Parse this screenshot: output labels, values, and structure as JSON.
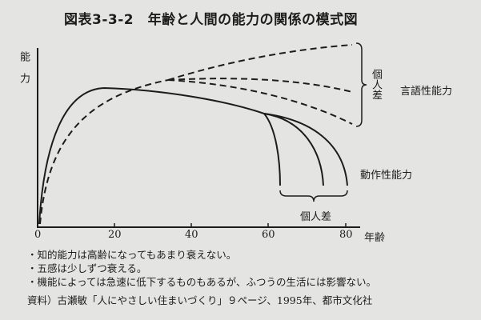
{
  "title": "図表3-3-2　年齢と人間の能力の関係の模式図",
  "y_axis_label": "能力",
  "x_axis_label": "年齢",
  "x_ticks": [
    "0",
    "20",
    "40",
    "60",
    "80"
  ],
  "labels": {
    "verbal": "言語性能力",
    "motor": "動作性能力",
    "individual_diff_verbal": "個人差",
    "individual_diff_motor": "個人差"
  },
  "notes": [
    "・知的能力は高齢になってもあまり衰えない。",
    "・五感は少しずつ衰える。",
    "・機能によっては急速に低下するものもあるが、ふつうの生活には影響ない。"
  ],
  "source": "資料）古瀬敏「人にやさしい住まいづくり」９ページ、1995年、都市文化社"
}
